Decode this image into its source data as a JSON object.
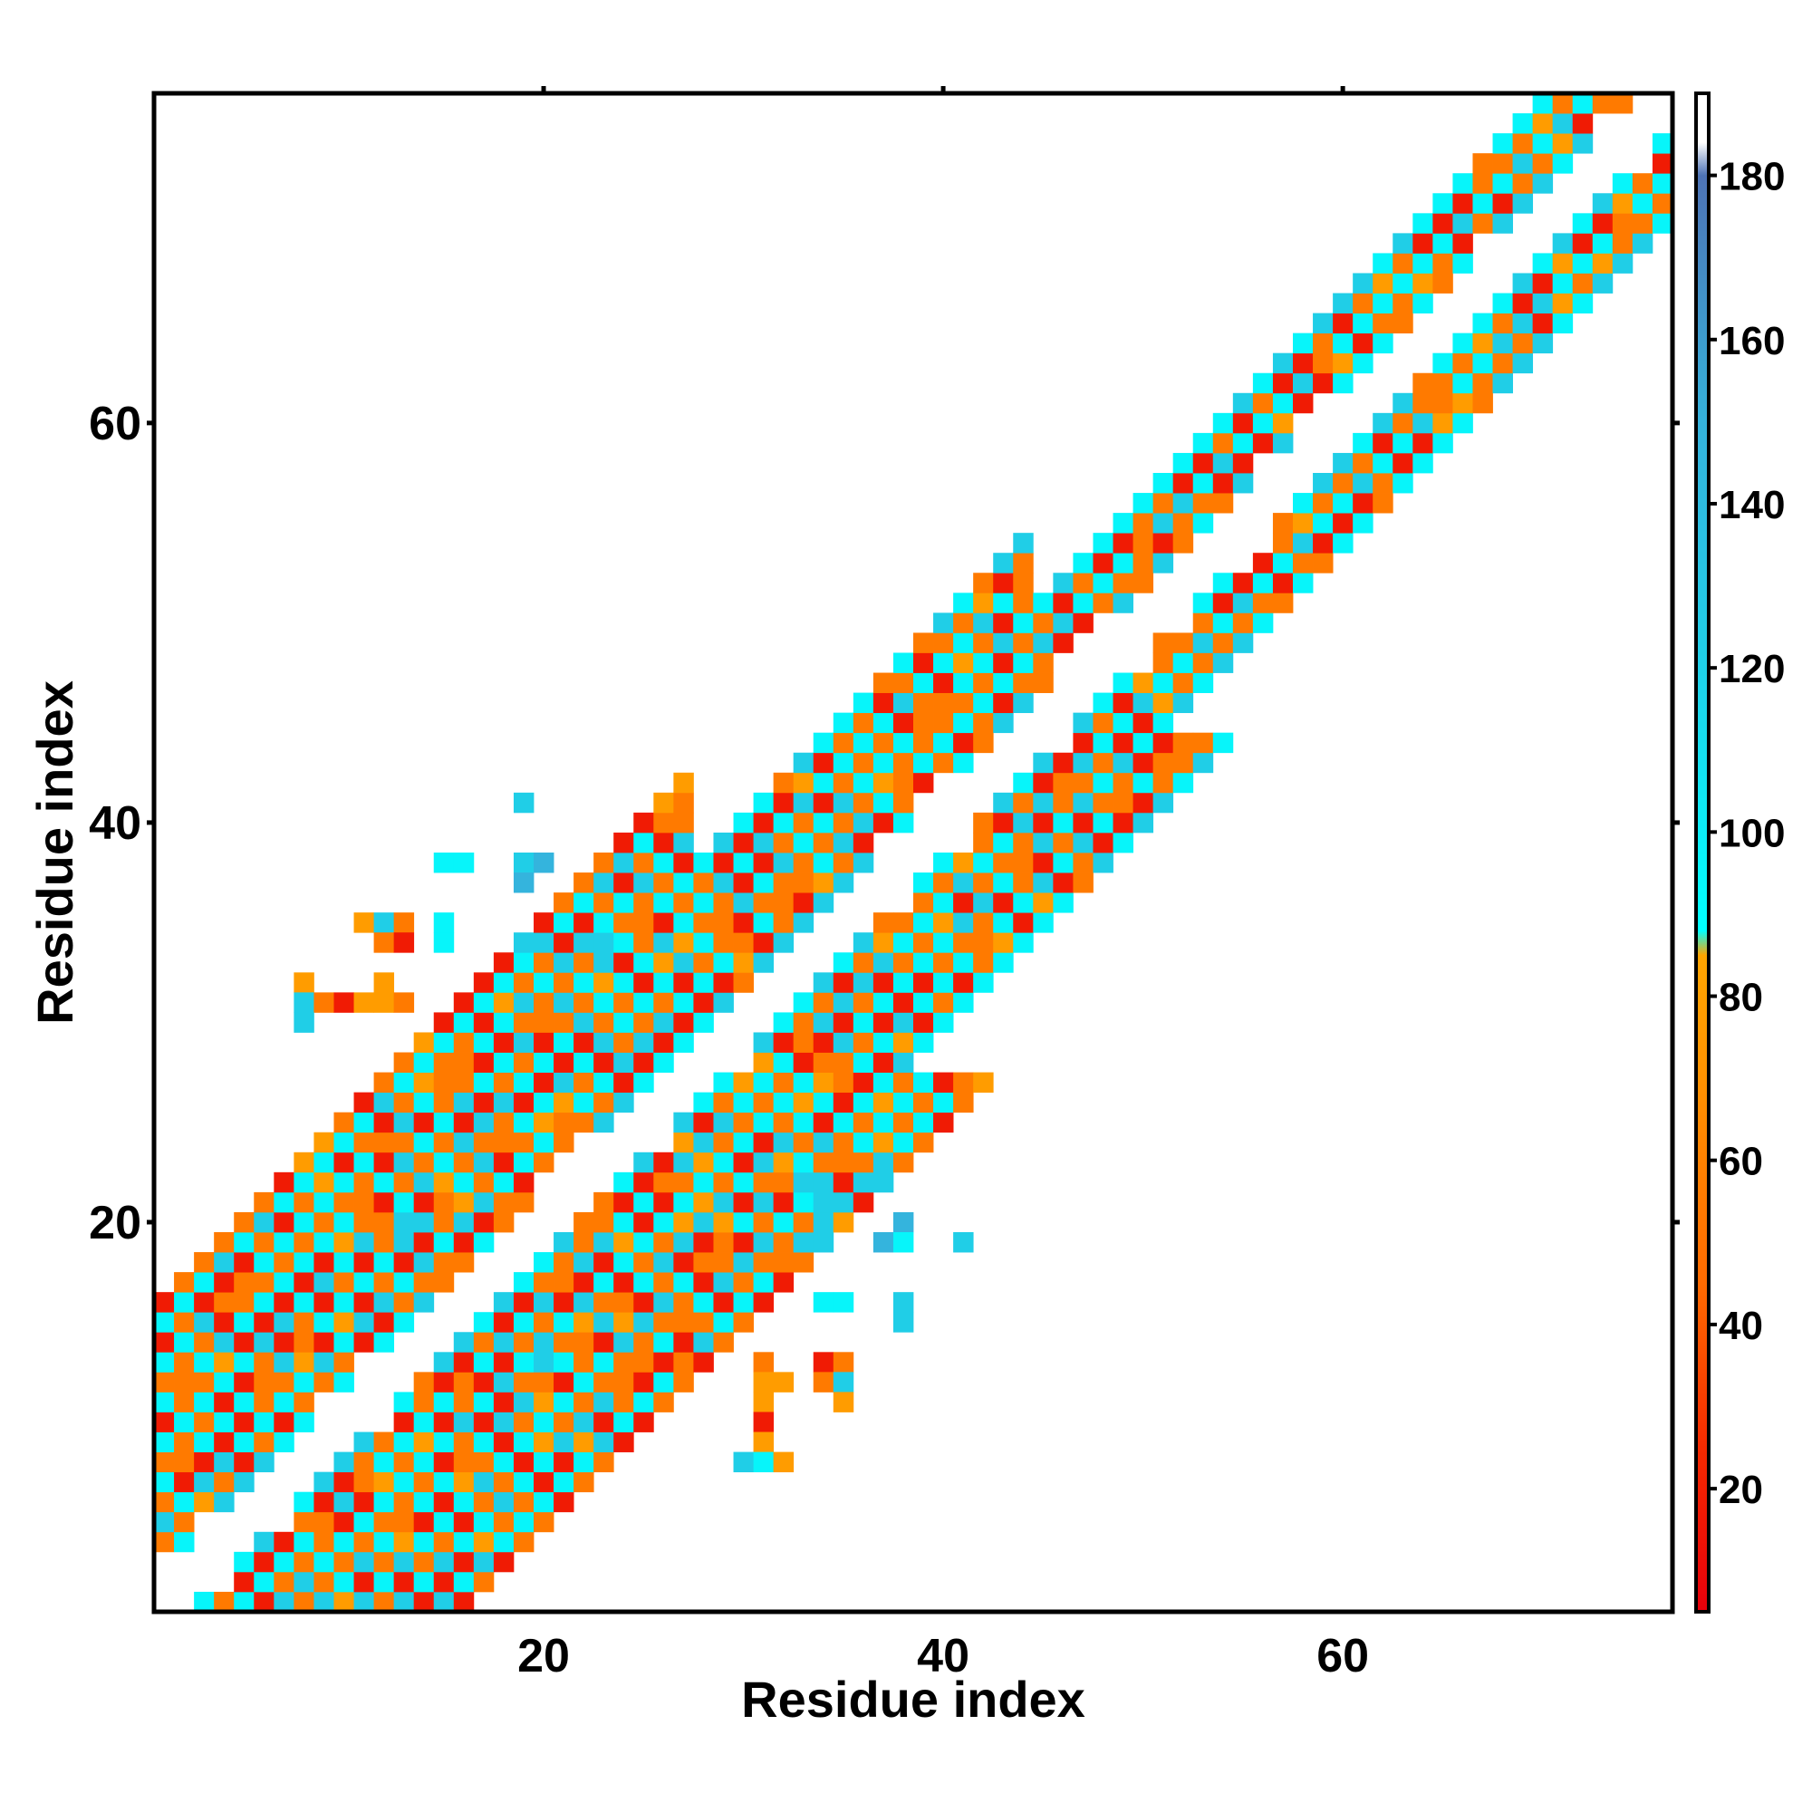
{
  "chart_data": {
    "type": "heatmap",
    "title": "",
    "xlabel": "Residue index",
    "ylabel": "Residue index",
    "xlim": [
      0.5,
      76.5
    ],
    "ylim": [
      0.5,
      76.5
    ],
    "x_ticks": [
      20,
      40,
      60
    ],
    "y_ticks": [
      20,
      40,
      60
    ],
    "x_tick_labels": [
      "20",
      "40",
      "60"
    ],
    "y_tick_labels": [
      "20",
      "40",
      "60"
    ],
    "grid": false,
    "legend": "none",
    "colorbar": {
      "placement": "right",
      "range": [
        5,
        190
      ],
      "ticks": [
        20,
        40,
        60,
        80,
        100,
        120,
        140,
        160,
        180
      ],
      "tick_labels": [
        "20",
        "40",
        "60",
        "80",
        "100",
        "120",
        "140",
        "160",
        "180"
      ],
      "stops": [
        {
          "value": 5,
          "color": "#e8000b"
        },
        {
          "value": 25,
          "color": "#f52a00"
        },
        {
          "value": 45,
          "color": "#ff6a00"
        },
        {
          "value": 72,
          "color": "#ff9500"
        },
        {
          "value": 85,
          "color": "#ffa500"
        },
        {
          "value": 88,
          "color": "#00ffff"
        },
        {
          "value": 120,
          "color": "#1fd0e8"
        },
        {
          "value": 150,
          "color": "#35b2dc"
        },
        {
          "value": 180,
          "color": "#4e73b6"
        },
        {
          "value": 184,
          "color": "#ffffff"
        },
        {
          "value": 190,
          "color": "#ffffff"
        }
      ]
    },
    "diagonal_band": {
      "description_values": "cell (i, j) with 2 <= |i - j| <= 15, value by offset pattern",
      "red_value": 18,
      "orange_value": 55,
      "amber_value": 78,
      "cyan_value": 95,
      "skyblue_value": 122
    },
    "off_diagonal_cells": [
      [
        19,
        41,
        122
      ],
      [
        15,
        38,
        95
      ],
      [
        16,
        38,
        95
      ],
      [
        19,
        38,
        122
      ],
      [
        20,
        38,
        148
      ],
      [
        19,
        37,
        148
      ],
      [
        23,
        37,
        122
      ],
      [
        11,
        35,
        78
      ],
      [
        12,
        35,
        122
      ],
      [
        13,
        35,
        55
      ],
      [
        15,
        35,
        95
      ],
      [
        12,
        34,
        55
      ],
      [
        13,
        34,
        18
      ],
      [
        15,
        34,
        95
      ],
      [
        19,
        34,
        122
      ],
      [
        20,
        34,
        122
      ],
      [
        22,
        34,
        122
      ],
      [
        23,
        34,
        122
      ],
      [
        23,
        33,
        122
      ],
      [
        8,
        32,
        78
      ],
      [
        12,
        32,
        78
      ],
      [
        8,
        31,
        122
      ],
      [
        9,
        31,
        55
      ],
      [
        10,
        31,
        18
      ],
      [
        11,
        31,
        78
      ],
      [
        12,
        31,
        78
      ],
      [
        13,
        31,
        55
      ],
      [
        8,
        30,
        122
      ],
      [
        33,
        22,
        122
      ],
      [
        34,
        22,
        122
      ],
      [
        37,
        22,
        122
      ],
      [
        34,
        21,
        122
      ],
      [
        12,
        20,
        55
      ],
      [
        13,
        20,
        122
      ],
      [
        14,
        20,
        122
      ],
      [
        34,
        20,
        122
      ],
      [
        38,
        20,
        148
      ],
      [
        34,
        19,
        122
      ],
      [
        37,
        19,
        148
      ],
      [
        38,
        19,
        95
      ],
      [
        41,
        19,
        122
      ],
      [
        34,
        16,
        95
      ],
      [
        35,
        16,
        95
      ],
      [
        38,
        16,
        122
      ],
      [
        38,
        15,
        122
      ],
      [
        20,
        14,
        122
      ],
      [
        20,
        13,
        122
      ],
      [
        31,
        13,
        55
      ],
      [
        34,
        13,
        18
      ],
      [
        35,
        13,
        55
      ],
      [
        20,
        12,
        55
      ],
      [
        31,
        12,
        78
      ],
      [
        32,
        12,
        78
      ],
      [
        34,
        12,
        55
      ],
      [
        35,
        12,
        122
      ],
      [
        31,
        11,
        78
      ],
      [
        35,
        11,
        78
      ],
      [
        31,
        10,
        18
      ],
      [
        31,
        9,
        78
      ],
      [
        30,
        8,
        122
      ],
      [
        31,
        8,
        95
      ],
      [
        32,
        8,
        78
      ]
    ]
  }
}
